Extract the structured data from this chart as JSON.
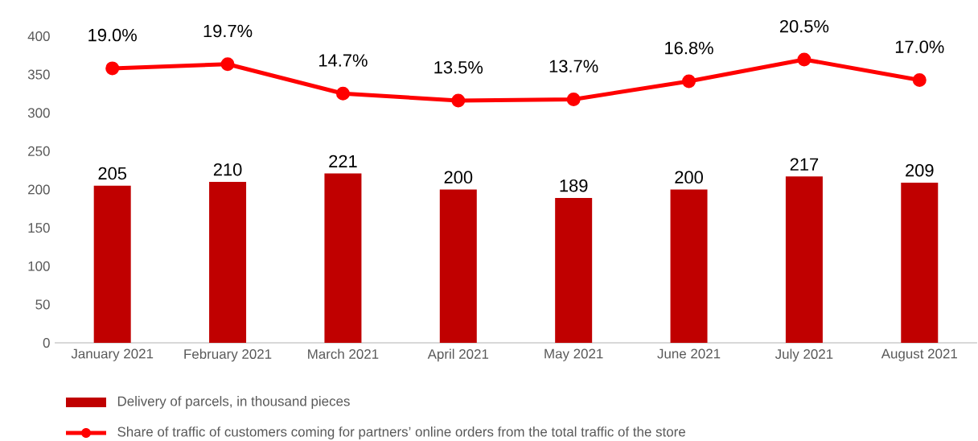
{
  "chart_data": {
    "type": "bar",
    "categories": [
      "January 2021",
      "February 2021",
      "March 2021",
      "April 2021",
      "May 2021",
      "June 2021",
      "July 2021",
      "August 2021"
    ],
    "series": [
      {
        "name": "Delivery of parcels, in thousand pieces",
        "color": "#c00000",
        "values": [
          205,
          210,
          221,
          200,
          189,
          200,
          217,
          209
        ],
        "value_labels": [
          "205",
          "210",
          "221",
          "200",
          "189",
          "200",
          "217",
          "209"
        ]
      },
      {
        "name": "Share of traffic of customers coming for partners’ online orders from the total traffic of the store",
        "type": "line",
        "axis": "y2",
        "color": "#ff0000",
        "marker": "circle",
        "values": [
          19.0,
          19.7,
          14.7,
          13.5,
          13.7,
          16.8,
          20.5,
          17.0
        ],
        "value_labels": [
          "19.0%",
          "19.7%",
          "14.7%",
          "13.5%",
          "13.7%",
          "16.8%",
          "20.5%",
          "17.0%"
        ]
      }
    ],
    "ylim": [
      0,
      400
    ],
    "yticks": [
      0,
      50,
      100,
      150,
      200,
      250,
      300,
      350,
      400
    ],
    "legend": "bottom"
  }
}
